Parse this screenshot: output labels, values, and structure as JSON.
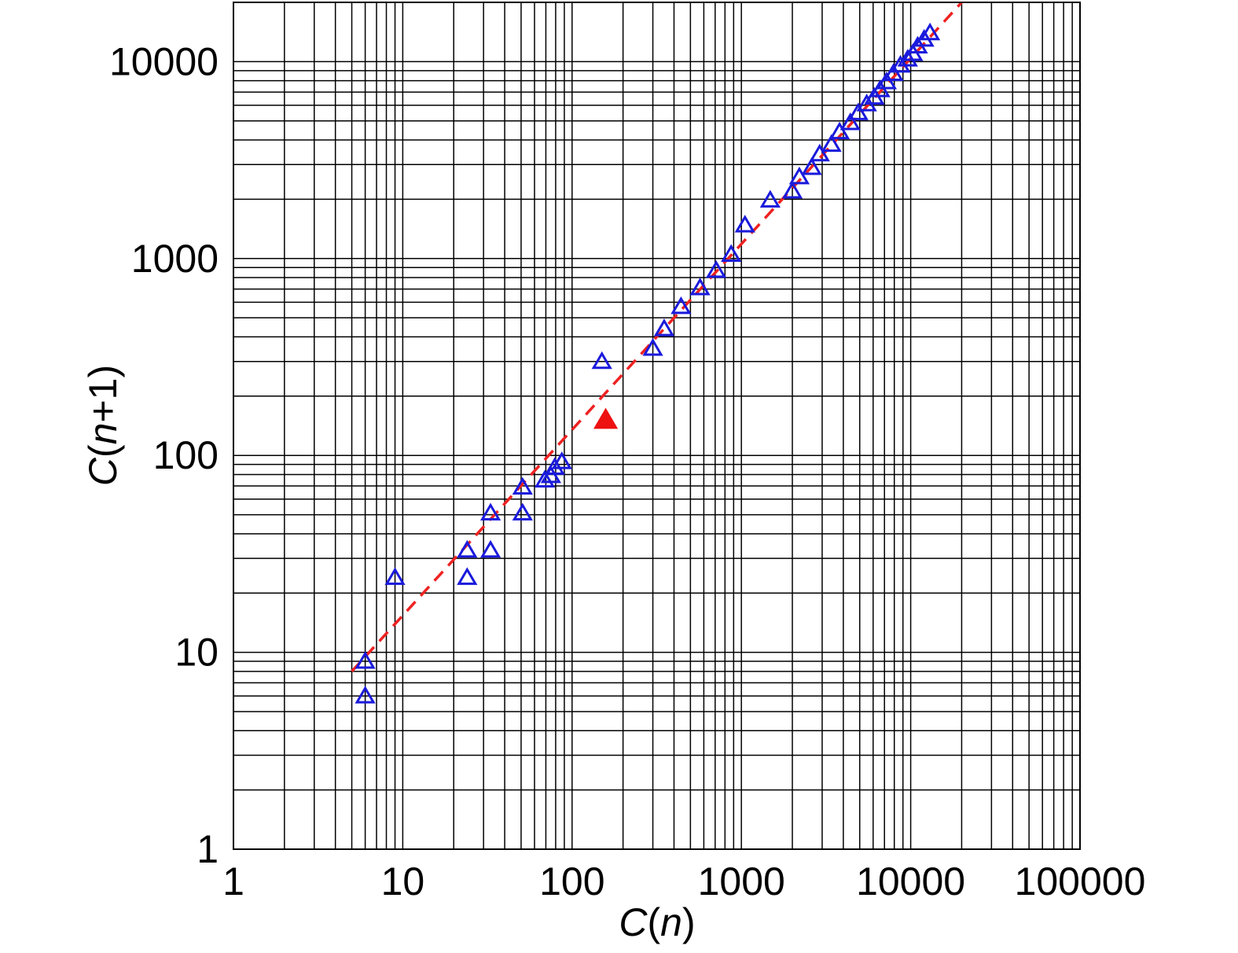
{
  "chart_data": {
    "type": "scatter",
    "title": "",
    "xlabel": {
      "var": "C",
      "open": "(",
      "arg": "n",
      "close": ")"
    },
    "ylabel": {
      "var": "C",
      "open": "(",
      "arg": "n",
      "op": "+1",
      "close": ")"
    },
    "xscale": "log",
    "yscale": "log",
    "xlim": [
      1,
      100000
    ],
    "ylim": [
      1,
      20000
    ],
    "grid": true,
    "xticks": [
      {
        "value": 1,
        "label": "1"
      },
      {
        "value": 10,
        "label": "10"
      },
      {
        "value": 100,
        "label": "100"
      },
      {
        "value": 1000,
        "label": "1000"
      },
      {
        "value": 10000,
        "label": "10000"
      },
      {
        "value": 100000,
        "label": "100000"
      }
    ],
    "yticks": [
      {
        "value": 1,
        "label": "1"
      },
      {
        "value": 10,
        "label": "10"
      },
      {
        "value": 100,
        "label": "100"
      },
      {
        "value": 1000,
        "label": "1000"
      },
      {
        "value": 10000,
        "label": "10000"
      }
    ],
    "series": [
      {
        "marker": "open-triangle",
        "color": "#1a1adc",
        "points": [
          [
            6,
            9
          ],
          [
            6,
            6
          ],
          [
            9,
            24
          ],
          [
            24,
            33
          ],
          [
            24,
            24
          ],
          [
            33,
            51
          ],
          [
            33,
            33
          ],
          [
            51,
            69
          ],
          [
            51,
            51
          ],
          [
            69,
            75
          ],
          [
            75,
            79
          ],
          [
            79,
            87
          ],
          [
            87,
            93
          ],
          [
            150,
            300
          ],
          [
            300,
            350
          ],
          [
            350,
            440
          ],
          [
            440,
            570
          ],
          [
            570,
            710
          ],
          [
            710,
            870
          ],
          [
            870,
            1050
          ],
          [
            1050,
            1480
          ],
          [
            1480,
            1980
          ],
          [
            2000,
            2200
          ],
          [
            2200,
            2600
          ],
          [
            2600,
            2900
          ],
          [
            2900,
            3400
          ],
          [
            3400,
            3800
          ],
          [
            3800,
            4400
          ],
          [
            4400,
            4900
          ],
          [
            4900,
            5500
          ],
          [
            5500,
            6100
          ],
          [
            6100,
            6600
          ],
          [
            6600,
            7200
          ],
          [
            7200,
            7900
          ],
          [
            7900,
            8700
          ],
          [
            8700,
            9600
          ],
          [
            9600,
            10300
          ],
          [
            10300,
            11000
          ],
          [
            11000,
            12000
          ],
          [
            12000,
            13000
          ],
          [
            13000,
            14000
          ]
        ]
      },
      {
        "marker": "filled-triangle",
        "color": "#ee1111",
        "points": [
          [
            158,
            152
          ]
        ]
      },
      {
        "marker": "dashed-line",
        "color": "#ee2222",
        "points": [
          [
            5,
            8
          ],
          [
            20000,
            20000
          ]
        ]
      }
    ]
  }
}
